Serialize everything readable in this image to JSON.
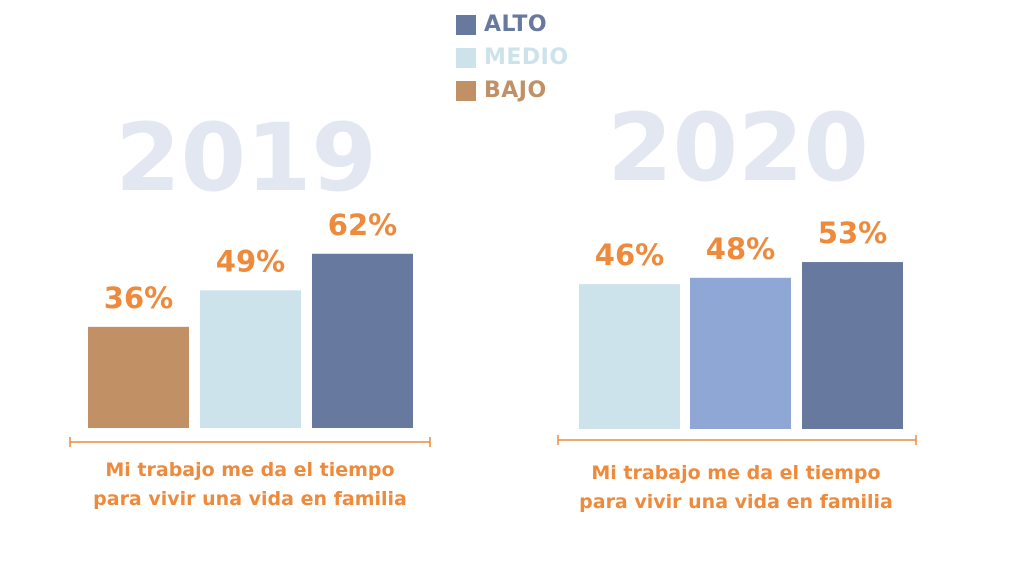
{
  "legend": [
    {
      "label": "ALTO",
      "color": "#67799f"
    },
    {
      "label": "MEDIO",
      "color": "#cde3ec"
    },
    {
      "label": "BAJO",
      "color": "#c19165"
    }
  ],
  "colors": {
    "year_text": "#e2e7f1",
    "value_label": "#ed8a3c",
    "axis_line": "#ed8a3c",
    "medio_alto_2020": "#8fa7d4"
  },
  "chart_data": [
    {
      "type": "bar",
      "title": "2019",
      "categories": [
        "BAJO",
        "MEDIO",
        "ALTO"
      ],
      "values": [
        36,
        49,
        62
      ],
      "value_labels": [
        "36%",
        "49%",
        "62%"
      ],
      "colors": [
        "#c19165",
        "#cde3ec",
        "#67799f"
      ],
      "caption_lines": [
        "Mi trabajo me da el tiempo",
        "para vivir una vida en familia"
      ],
      "ylim": [
        0,
        70
      ],
      "grid": false
    },
    {
      "type": "bar",
      "title": "2020",
      "categories": [
        "MEDIO",
        "",
        "ALTO"
      ],
      "values": [
        46,
        48,
        53
      ],
      "value_labels": [
        "46%",
        "48%",
        "53%"
      ],
      "colors": [
        "#cde3ec",
        "#8fa7d4",
        "#67799f"
      ],
      "caption_lines": [
        "Mi trabajo me da el tiempo",
        "para vivir una vida en familia"
      ],
      "ylim": [
        0,
        70
      ],
      "grid": false
    }
  ]
}
